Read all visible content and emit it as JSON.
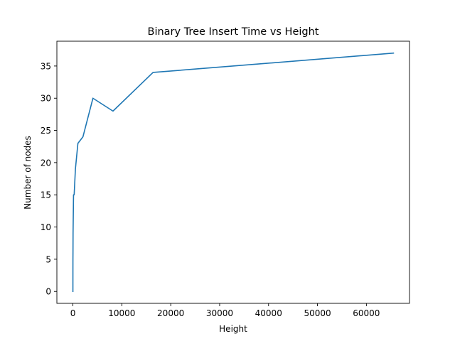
{
  "chart_data": {
    "type": "line",
    "title": "Binary Tree Insert Time vs Height",
    "xlabel": "Height",
    "ylabel": "Number of nodes",
    "xlim": [
      -3277,
      68813
    ],
    "ylim": [
      -1.85,
      38.85
    ],
    "xticks": [
      0,
      10000,
      20000,
      30000,
      40000,
      50000,
      60000
    ],
    "yticks": [
      0,
      5,
      10,
      15,
      20,
      25,
      30,
      35
    ],
    "grid": false,
    "series": [
      {
        "color": "#1f77b4",
        "x": [
          1,
          2,
          4,
          8,
          16,
          32,
          64,
          128,
          256,
          512,
          1024,
          2048,
          4096,
          8192,
          16384,
          65536
        ],
        "y": [
          0,
          1,
          3,
          5,
          6,
          9,
          11,
          15,
          15,
          19,
          23,
          24,
          30,
          28,
          34,
          37
        ]
      }
    ]
  }
}
